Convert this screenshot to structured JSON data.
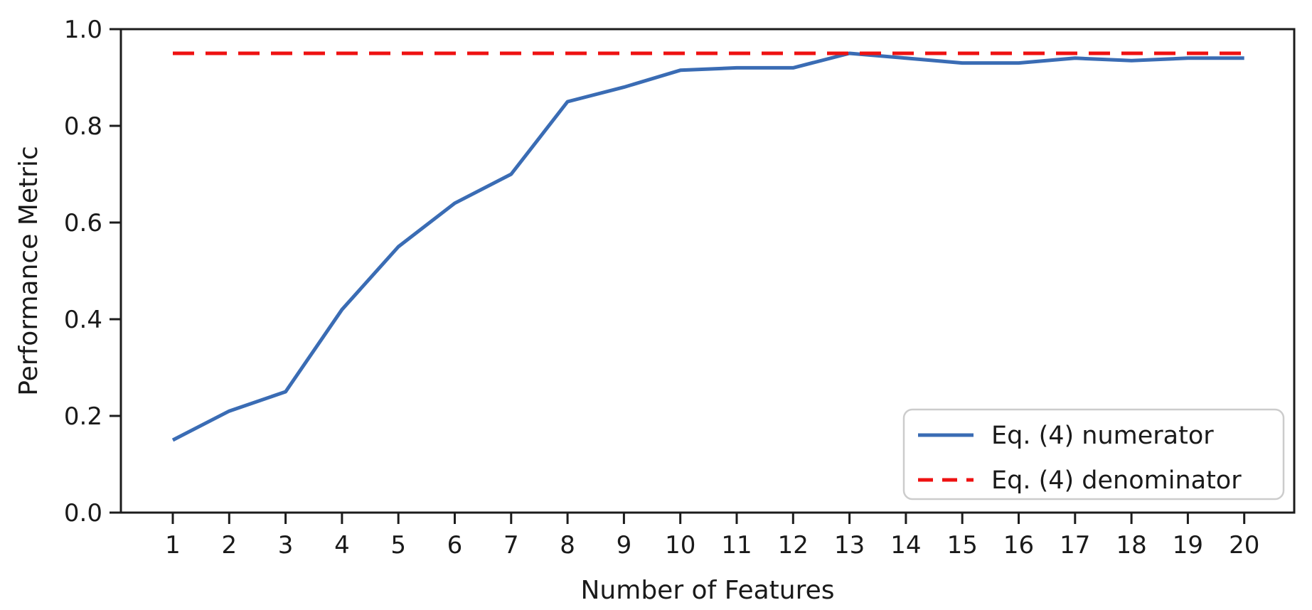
{
  "chart_data": {
    "type": "line",
    "title": "",
    "xlabel": "Number of Features",
    "ylabel": "Performance Metric",
    "x": [
      1,
      2,
      3,
      4,
      5,
      6,
      7,
      8,
      9,
      10,
      11,
      12,
      13,
      14,
      15,
      16,
      17,
      18,
      19,
      20
    ],
    "xtick_labels": [
      "1",
      "2",
      "3",
      "4",
      "5",
      "6",
      "7",
      "8",
      "9",
      "10",
      "11",
      "12",
      "13",
      "14",
      "15",
      "16",
      "17",
      "18",
      "19",
      "20"
    ],
    "yticks": [
      0.0,
      0.2,
      0.4,
      0.6,
      0.8,
      1.0
    ],
    "ytick_labels": [
      "0.0",
      "0.2",
      "0.4",
      "0.6",
      "0.8",
      "1.0"
    ],
    "ylim": [
      0.0,
      1.0
    ],
    "grid": false,
    "legend_position": "lower right",
    "series": [
      {
        "name": "Eq. (4) numerator",
        "color": "#3a6cb4",
        "line_style": "solid",
        "values": [
          0.15,
          0.21,
          0.25,
          0.42,
          0.55,
          0.64,
          0.7,
          0.85,
          0.88,
          0.915,
          0.92,
          0.92,
          0.95,
          0.94,
          0.93,
          0.93,
          0.94,
          0.935,
          0.94,
          0.94
        ]
      },
      {
        "name": "Eq. (4) denominator",
        "color": "#ee1111",
        "line_style": "dashed",
        "values": [
          0.95,
          0.95,
          0.95,
          0.95,
          0.95,
          0.95,
          0.95,
          0.95,
          0.95,
          0.95,
          0.95,
          0.95,
          0.95,
          0.95,
          0.95,
          0.95,
          0.95,
          0.95,
          0.95,
          0.95
        ]
      }
    ]
  }
}
